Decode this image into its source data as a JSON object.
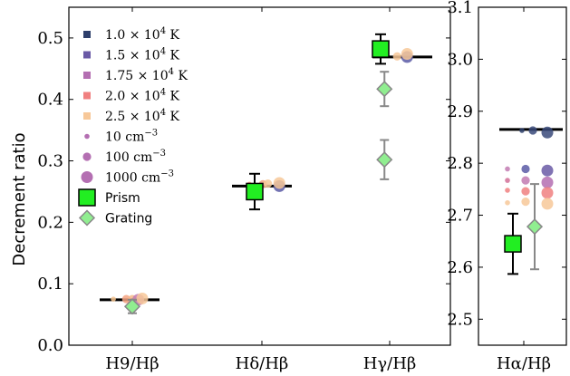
{
  "chart_data": [
    {
      "type": "scatter",
      "ylabel": "Decrement ratio",
      "ylim": [
        0.0,
        0.55
      ],
      "yticks": [
        "0.0",
        "0.1",
        "0.2",
        "0.3",
        "0.4",
        "0.5"
      ],
      "ytick_values": [
        0.0,
        0.1,
        0.2,
        0.3,
        0.4,
        0.5
      ],
      "categories": [
        "H9/Hβ",
        "Hδ/Hβ",
        "Hγ/Hβ"
      ],
      "model_lines": [
        0.074,
        0.259,
        0.469
      ],
      "prism": {
        "name": "Prism",
        "values": [
          null,
          0.25,
          0.482
        ],
        "err": [
          null,
          0.029,
          0.024
        ],
        "color": "#22ee22"
      },
      "grating": {
        "name": "Grating",
        "points": [
          {
            "cat": 0,
            "offset": 0.0,
            "y": 0.063,
            "err": 0.011
          },
          {
            "cat": 2,
            "offset": -0.25,
            "y": 0.417,
            "err": 0.028
          },
          {
            "cat": 2,
            "offset": -0.25,
            "y": 0.302,
            "err": 0.032
          }
        ],
        "color": "#90ee90"
      },
      "models": [
        {
          "cat": 0,
          "offset": -0.38,
          "y": 0.075,
          "color": "#f5c38e",
          "size": 1
        },
        {
          "cat": 0,
          "offset": -0.12,
          "y": 0.075,
          "color": "#f4a582",
          "size": 2
        },
        {
          "cat": 0,
          "offset": 0.0,
          "y": 0.075,
          "color": "#f4b889",
          "size": 2
        },
        {
          "cat": 0,
          "offset": 0.12,
          "y": 0.074,
          "color": "#c27ab2",
          "size": 3
        },
        {
          "cat": 0,
          "offset": 0.2,
          "y": 0.076,
          "color": "#f7c899",
          "size": 3
        },
        {
          "cat": 1,
          "offset": -0.25,
          "y": 0.262,
          "color": "#f4a582",
          "size": 1
        },
        {
          "cat": 1,
          "offset": 0.02,
          "y": 0.262,
          "color": "#f4a582",
          "size": 2
        },
        {
          "cat": 1,
          "offset": 0.12,
          "y": 0.263,
          "color": "#f7c899",
          "size": 2
        },
        {
          "cat": 1,
          "offset": 0.35,
          "y": 0.259,
          "color": "#5a5aa6",
          "size": 3
        },
        {
          "cat": 1,
          "offset": 0.35,
          "y": 0.264,
          "color": "#f7c899",
          "size": 3
        },
        {
          "cat": 2,
          "offset": 0.15,
          "y": 0.47,
          "color": "#f7c899",
          "size": 2
        },
        {
          "cat": 2,
          "offset": 0.35,
          "y": 0.469,
          "color": "#5a5aa6",
          "size": 3
        },
        {
          "cat": 2,
          "offset": 0.35,
          "y": 0.474,
          "color": "#f7c899",
          "size": 3
        }
      ]
    },
    {
      "type": "scatter",
      "ylim": [
        2.45,
        3.1
      ],
      "yticks": [
        "2.5",
        "2.6",
        "2.7",
        "2.8",
        "2.9",
        "3.0",
        "3.1"
      ],
      "ytick_values": [
        2.5,
        2.6,
        2.7,
        2.8,
        2.9,
        3.0,
        3.1
      ],
      "categories": [
        "Hα/Hβ"
      ],
      "model_lines": [
        2.865
      ],
      "prism": {
        "name": "Prism",
        "values": [
          2.645
        ],
        "err": [
          0.058
        ],
        "color": "#22ee22"
      },
      "grating": {
        "name": "Grating",
        "points": [
          {
            "cat": 0,
            "offset": 0.3,
            "y": 2.678,
            "err": 0.082
          }
        ],
        "color": "#90ee90"
      },
      "models": [
        {
          "cat": 0,
          "offset": -0.45,
          "y": 2.789,
          "color": "#c27ab2",
          "size": 1
        },
        {
          "cat": 0,
          "offset": -0.45,
          "y": 2.767,
          "color": "#d16f96",
          "size": 1
        },
        {
          "cat": 0,
          "offset": -0.45,
          "y": 2.748,
          "color": "#f08080",
          "size": 1
        },
        {
          "cat": 0,
          "offset": -0.45,
          "y": 2.724,
          "color": "#f7c899",
          "size": 1
        },
        {
          "cat": 0,
          "offset": -0.05,
          "y": 2.863,
          "color": "#2e3f6b",
          "size": 1
        },
        {
          "cat": 0,
          "offset": 0.05,
          "y": 2.789,
          "color": "#5a5aa6",
          "size": 2
        },
        {
          "cat": 0,
          "offset": 0.05,
          "y": 2.767,
          "color": "#c27ab2",
          "size": 2
        },
        {
          "cat": 0,
          "offset": 0.05,
          "y": 2.746,
          "color": "#f08080",
          "size": 2
        },
        {
          "cat": 0,
          "offset": 0.05,
          "y": 2.726,
          "color": "#f7c899",
          "size": 2
        },
        {
          "cat": 0,
          "offset": 0.25,
          "y": 2.863,
          "color": "#3a4a7a",
          "size": 2
        },
        {
          "cat": 0,
          "offset": 0.65,
          "y": 2.786,
          "color": "#6a5aa6",
          "size": 3
        },
        {
          "cat": 0,
          "offset": 0.65,
          "y": 2.763,
          "color": "#b46fb2",
          "size": 3
        },
        {
          "cat": 0,
          "offset": 0.65,
          "y": 2.743,
          "color": "#f08080",
          "size": 3
        },
        {
          "cat": 0,
          "offset": 0.65,
          "y": 2.722,
          "color": "#f7c899",
          "size": 3
        },
        {
          "cat": 0,
          "offset": 0.65,
          "y": 2.859,
          "color": "#3a4a7a",
          "size": 3
        }
      ]
    }
  ],
  "legend": [
    {
      "label": "1.0 × 10",
      "sup": "4",
      "unit": " K",
      "marker": "square",
      "color": "#2e3f6b"
    },
    {
      "label": "1.5 × 10",
      "sup": "4",
      "unit": " K",
      "marker": "square",
      "color": "#6a5aa6"
    },
    {
      "label": "1.75 × 10",
      "sup": "4",
      "unit": " K",
      "marker": "square",
      "color": "#b46fb2"
    },
    {
      "label": "2.0 × 10",
      "sup": "4",
      "unit": " K",
      "marker": "square",
      "color": "#f08080"
    },
    {
      "label": "2.5 × 10",
      "sup": "4",
      "unit": " K",
      "marker": "square",
      "color": "#f7c899"
    },
    {
      "label": "10 cm",
      "sup": "−3",
      "unit": "",
      "marker": "circle",
      "size": 1,
      "color": "#b46fb2"
    },
    {
      "label": "100 cm",
      "sup": "−3",
      "unit": "",
      "marker": "circle",
      "size": 2,
      "color": "#b46fb2"
    },
    {
      "label": "1000 cm",
      "sup": "−3",
      "unit": "",
      "marker": "circle",
      "size": 3,
      "color": "#b46fb2"
    },
    {
      "label": "Prism",
      "sup": "",
      "unit": "",
      "marker": "big-square",
      "color": "#22ee22"
    },
    {
      "label": "Grating",
      "sup": "",
      "unit": "",
      "marker": "diamond",
      "color": "#90ee90"
    }
  ]
}
